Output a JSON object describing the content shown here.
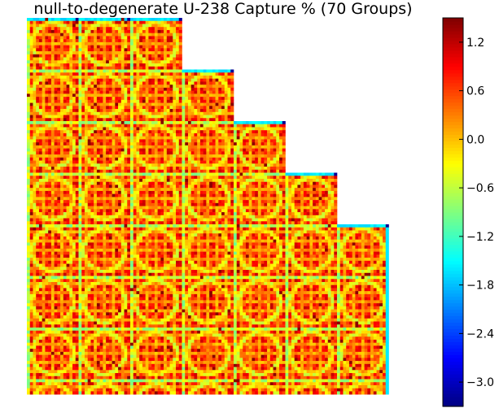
{
  "chart_data": {
    "type": "heatmap",
    "title": "null-to-degenerate U-238 Capture % (70 Groups)",
    "xlabel": "",
    "ylabel": "",
    "colormap": "jet",
    "grid": false,
    "colorbar": {
      "vmin": -3.3,
      "vmax": 1.5,
      "ticks": [
        1.2,
        0.6,
        0.0,
        -0.6,
        -1.2,
        -1.8,
        -2.4,
        -3.0
      ],
      "tick_labels": [
        "1.2",
        "0.6",
        "0.0",
        "−0.6",
        "−1.2",
        "−1.8",
        "−2.4",
        "−3.0"
      ]
    },
    "map": {
      "assembly_columns": 7,
      "assembly_rows_visible": 7.25,
      "staircase_assemblies_per_column": [
        7.25,
        7.25,
        7.25,
        6.25,
        5.25,
        4.25,
        3.25
      ],
      "pin_lattice": 17,
      "ring_value": -0.3,
      "ring_edge_value": -1.0,
      "boundary_value": -1.6,
      "background_value_range": [
        0.4,
        1.2
      ],
      "channel_value": 0.15
    }
  }
}
